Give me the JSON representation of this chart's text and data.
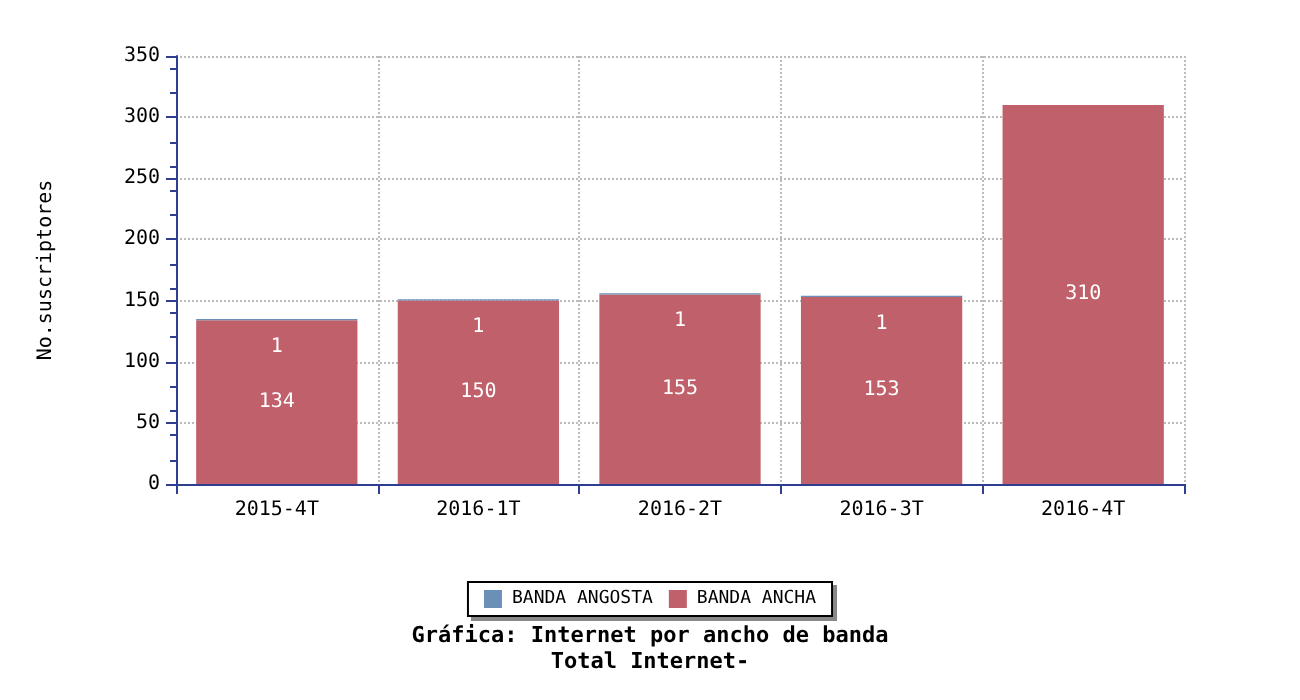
{
  "chart_data": {
    "type": "bar",
    "title": "Gráfica: Internet por ancho de banda",
    "subtitle": "Total Internet-",
    "ylabel": "No.suscriptores",
    "categories": [
      "2015-4T",
      "2016-1T",
      "2016-2T",
      "2016-3T",
      "2016-4T"
    ],
    "stacked": true,
    "series": [
      {
        "name": "BANDA ANCHA",
        "color": "#c0606a",
        "values": [
          134,
          150,
          155,
          153,
          310
        ],
        "value_labels": [
          "134",
          "150",
          "155",
          "153",
          "310"
        ]
      },
      {
        "name": "BANDA ANGOSTA",
        "color": "#6a90b8",
        "values": [
          1,
          1,
          1,
          1,
          null
        ],
        "value_labels": [
          "1",
          "1",
          "1",
          "1",
          null
        ]
      }
    ],
    "ylim": [
      0,
      350
    ],
    "yticks": [
      0,
      50,
      100,
      150,
      200,
      250,
      300,
      350
    ],
    "grid": true,
    "legend": "bottom"
  }
}
